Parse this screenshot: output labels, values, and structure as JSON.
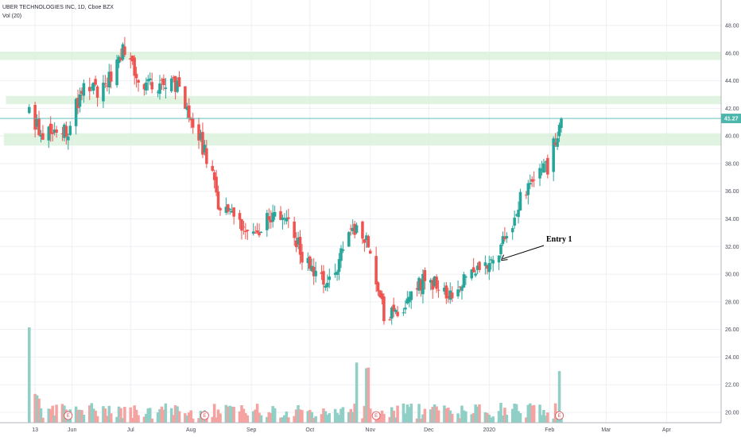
{
  "header": {
    "title": "UBER TECHNOLOGIES INC, 1D, Cboe BZX",
    "indicator": "Vol (20)"
  },
  "colors": {
    "up": "#26a69a",
    "down": "#ef5350",
    "vol_up": "#8fcfc6",
    "vol_down": "#f4a3a1",
    "zone": "#d9f0d9",
    "price_line": "#4db6ac",
    "grid": "#eeeff2"
  },
  "chart_data": {
    "type": "candlestick",
    "title": "UBER TECHNOLOGIES INC, 1D, Cboe BZX",
    "last_price": "41.27",
    "y_ticks": [
      20,
      22,
      24,
      26,
      28,
      30,
      32,
      34,
      36,
      38,
      40,
      42,
      44,
      46,
      48
    ],
    "y_tick_labels": [
      "20.00",
      "22.00",
      "24.00",
      "26.00",
      "28.00",
      "30.00",
      "32.00",
      "34.00",
      "36.00",
      "38.00",
      "40.00",
      "42.00",
      "44.00",
      "46.00",
      "48.00"
    ],
    "ylim": [
      19.2,
      49.4
    ],
    "x_ticks": [
      {
        "label": "13",
        "x": "2019-05-13"
      },
      {
        "label": "Jun",
        "x": "2019-06-01"
      },
      {
        "label": "Jul",
        "x": "2019-07-01"
      },
      {
        "label": "Aug",
        "x": "2019-08-01"
      },
      {
        "label": "Sep",
        "x": "2019-09-01"
      },
      {
        "label": "Oct",
        "x": "2019-10-01"
      },
      {
        "label": "Nov",
        "x": "2019-11-01"
      },
      {
        "label": "Dec",
        "x": "2019-12-01"
      },
      {
        "label": "2020",
        "x": "2020-01-01"
      },
      {
        "label": "Feb",
        "x": "2020-02-01"
      },
      {
        "label": "Mar",
        "x": "2020-03-01"
      },
      {
        "label": "Apr",
        "x": "2020-04-01"
      }
    ],
    "xlim": [
      "2019-04-25",
      "2020-04-29"
    ],
    "zones": [
      {
        "from": 45.5,
        "to": 46.1,
        "start": "2019-04-25"
      },
      {
        "from": 42.3,
        "to": 42.9,
        "start": "2019-04-28"
      },
      {
        "from": 39.3,
        "to": 40.2,
        "start": "2019-04-27"
      }
    ],
    "closes": [
      {
        "x": "2019-05-10",
        "y": 41.57
      },
      {
        "x": "2019-05-17",
        "y": 39.9
      },
      {
        "x": "2019-05-24",
        "y": 40.6
      },
      {
        "x": "2019-05-31",
        "y": 40.5
      },
      {
        "x": "2019-06-07",
        "y": 44.1
      },
      {
        "x": "2019-06-14",
        "y": 43.3
      },
      {
        "x": "2019-06-21",
        "y": 44.3
      },
      {
        "x": "2019-06-28",
        "y": 46.4
      },
      {
        "x": "2019-07-05",
        "y": 44.1
      },
      {
        "x": "2019-07-12",
        "y": 43.7
      },
      {
        "x": "2019-07-19",
        "y": 43.9
      },
      {
        "x": "2019-07-26",
        "y": 43.8
      },
      {
        "x": "2019-08-02",
        "y": 41.0
      },
      {
        "x": "2019-08-09",
        "y": 38.6
      },
      {
        "x": "2019-08-16",
        "y": 34.6
      },
      {
        "x": "2019-08-23",
        "y": 34.2
      },
      {
        "x": "2019-08-30",
        "y": 32.5
      },
      {
        "x": "2019-09-06",
        "y": 33.3
      },
      {
        "x": "2019-09-13",
        "y": 34.5
      },
      {
        "x": "2019-09-20",
        "y": 34.0
      },
      {
        "x": "2019-09-27",
        "y": 31.3
      },
      {
        "x": "2019-10-04",
        "y": 30.0
      },
      {
        "x": "2019-10-11",
        "y": 29.2
      },
      {
        "x": "2019-10-18",
        "y": 31.9
      },
      {
        "x": "2019-10-25",
        "y": 33.6
      },
      {
        "x": "2019-11-01",
        "y": 31.6
      },
      {
        "x": "2019-11-08",
        "y": 27.0
      },
      {
        "x": "2019-11-15",
        "y": 26.9
      },
      {
        "x": "2019-11-22",
        "y": 28.5
      },
      {
        "x": "2019-11-29",
        "y": 29.7
      },
      {
        "x": "2019-12-06",
        "y": 29.1
      },
      {
        "x": "2019-12-13",
        "y": 28.1
      },
      {
        "x": "2019-12-20",
        "y": 29.7
      },
      {
        "x": "2019-12-27",
        "y": 30.6
      },
      {
        "x": "2020-01-03",
        "y": 30.9
      },
      {
        "x": "2020-01-10",
        "y": 32.9
      },
      {
        "x": "2020-01-17",
        "y": 35.4
      },
      {
        "x": "2020-01-24",
        "y": 37.4
      },
      {
        "x": "2020-01-31",
        "y": 37.7
      },
      {
        "x": "2020-02-07",
        "y": 41.27
      }
    ],
    "volume_bars": 190,
    "earnings_markers": [
      "2019-05-30",
      "2019-08-08",
      "2019-11-04",
      "2020-02-06"
    ],
    "earnings_label": "E",
    "annotation": {
      "text": "Entry 1",
      "x": "2020-01-06",
      "y": 31.0
    }
  }
}
